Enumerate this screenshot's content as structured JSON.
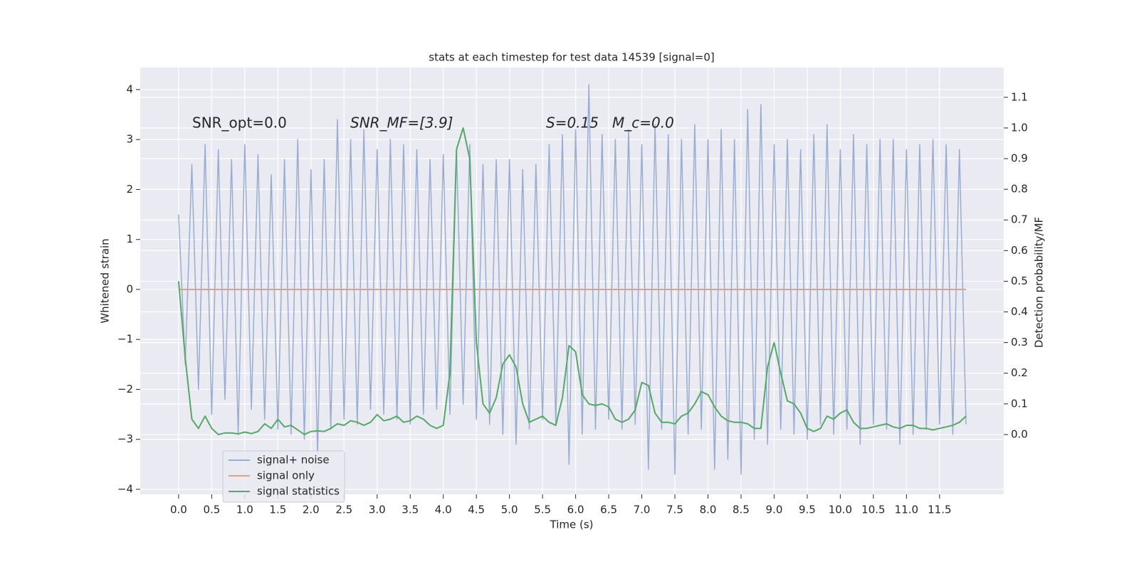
{
  "chart_data": {
    "type": "line",
    "title": "stats at each timestep for test data 14539 [signal=0]",
    "xlabel": "Time (s)",
    "ylabel": "Whitened strain",
    "y2label": "Detection probability/MF",
    "annotations": [
      "SNR_opt=0.0",
      "SNR_MF=[3.9]",
      "S=0.15",
      "M_c=0.0"
    ],
    "xlim": [
      -0.58,
      12.47
    ],
    "ylim": [
      -4.1,
      4.44
    ],
    "y2lim": [
      -0.195,
      1.197
    ],
    "xticks": [
      {
        "value": 0,
        "label": "0.0"
      },
      0.5,
      {
        "value": 1,
        "label": "1.0"
      },
      1.5,
      {
        "value": 2,
        "label": "2.0"
      },
      2.5,
      {
        "value": 3,
        "label": "3.0"
      },
      3.5,
      {
        "value": 4,
        "label": "4.0"
      },
      4.5,
      {
        "value": 5,
        "label": "5.0"
      },
      5.5,
      {
        "value": 6,
        "label": "6.0"
      },
      6.5,
      {
        "value": 7,
        "label": "7.0"
      },
      7.5,
      {
        "value": 8,
        "label": "8.0"
      },
      8.5,
      {
        "value": 9,
        "label": "9.0"
      },
      9.5,
      {
        "value": 10,
        "label": "10.0"
      },
      10.5,
      {
        "value": 11,
        "label": "11.0"
      },
      11.5
    ],
    "yticks": [
      {
        "value": -4,
        "label": "−4"
      },
      {
        "value": -3,
        "label": "−3"
      },
      {
        "value": -2,
        "label": "−2"
      },
      {
        "value": -1,
        "label": "−1"
      },
      0,
      1,
      2,
      3,
      4
    ],
    "y2ticks": [
      {
        "value": 0,
        "label": "0.0"
      },
      0.1,
      0.2,
      0.3,
      0.4,
      0.5,
      0.6,
      0.7,
      0.8,
      0.9,
      {
        "value": 1,
        "label": "1.0"
      },
      1.1
    ],
    "grid": true,
    "legend": "lower left",
    "x": [
      0.0,
      0.1,
      0.2,
      0.3,
      0.4,
      0.5,
      0.6,
      0.7,
      0.8,
      0.9,
      1.0,
      1.1,
      1.2,
      1.3,
      1.4,
      1.5,
      1.6,
      1.7,
      1.8,
      1.9,
      2.0,
      2.1,
      2.2,
      2.3,
      2.4,
      2.5,
      2.6,
      2.7,
      2.8,
      2.9,
      3.0,
      3.1,
      3.2,
      3.3,
      3.4,
      3.5,
      3.6,
      3.7,
      3.8,
      3.9,
      4.0,
      4.1,
      4.2,
      4.3,
      4.4,
      4.5,
      4.6,
      4.7,
      4.8,
      4.9,
      5.0,
      5.1,
      5.2,
      5.3,
      5.4,
      5.5,
      5.6,
      5.7,
      5.8,
      5.9,
      6.0,
      6.1,
      6.2,
      6.3,
      6.4,
      6.5,
      6.6,
      6.7,
      6.8,
      6.9,
      7.0,
      7.1,
      7.2,
      7.3,
      7.4,
      7.5,
      7.6,
      7.7,
      7.8,
      7.9,
      8.0,
      8.1,
      8.2,
      8.3,
      8.4,
      8.5,
      8.6,
      8.7,
      8.8,
      8.9,
      9.0,
      9.1,
      9.2,
      9.3,
      9.4,
      9.5,
      9.6,
      9.7,
      9.8,
      9.9,
      10.0,
      10.1,
      10.2,
      10.3,
      10.4,
      10.5,
      10.6,
      10.7,
      10.8,
      10.9,
      11.0,
      11.1,
      11.2,
      11.3,
      11.4,
      11.5,
      11.6,
      11.7,
      11.8,
      11.9
    ],
    "series": [
      {
        "name": "signal+ noise",
        "color": "#9aadd0",
        "values": [
          1.5,
          -1.5,
          2.5,
          -2.0,
          2.9,
          -2.5,
          2.8,
          -2.2,
          2.6,
          -2.9,
          2.9,
          -2.4,
          2.7,
          -2.6,
          2.3,
          -2.8,
          2.6,
          -2.9,
          3.0,
          -3.0,
          2.4,
          -3.3,
          2.6,
          -2.8,
          3.4,
          -2.6,
          3.0,
          -2.7,
          3.2,
          -2.4,
          2.8,
          -2.5,
          3.0,
          -2.6,
          2.9,
          -2.7,
          2.8,
          -2.5,
          2.6,
          -2.4,
          2.7,
          -2.5,
          2.8,
          -2.3,
          2.9,
          -2.6,
          2.5,
          -2.7,
          2.6,
          -2.9,
          2.6,
          -3.1,
          2.4,
          -2.8,
          2.5,
          -2.6,
          2.9,
          -2.7,
          3.1,
          -3.5,
          3.2,
          -2.9,
          4.1,
          -2.8,
          3.1,
          -2.6,
          3.0,
          -2.8,
          3.2,
          -2.7,
          2.9,
          -3.6,
          3.3,
          -2.8,
          3.1,
          -3.7,
          3.0,
          -2.9,
          3.3,
          -2.8,
          3.0,
          -3.6,
          3.2,
          -3.4,
          3.0,
          -3.7,
          3.6,
          -3.0,
          3.7,
          -3.1,
          2.9,
          -2.8,
          3.0,
          -2.9,
          2.8,
          -3.0,
          3.1,
          -2.7,
          3.3,
          -2.9,
          2.8,
          -2.8,
          3.1,
          -3.1,
          2.9,
          -2.7,
          3.0,
          -2.8,
          3.0,
          -3.1,
          2.8,
          -2.9,
          2.9,
          -2.8,
          3.0,
          -2.7,
          2.9,
          -2.9,
          2.8,
          -2.7
        ]
      },
      {
        "name": "signal only",
        "color": "#e8a07c",
        "values": [
          0,
          0,
          0,
          0,
          0,
          0,
          0,
          0,
          0,
          0,
          0,
          0,
          0,
          0,
          0,
          0,
          0,
          0,
          0,
          0,
          0,
          0,
          0,
          0,
          0,
          0,
          0,
          0,
          0,
          0,
          0,
          0,
          0,
          0,
          0,
          0,
          0,
          0,
          0,
          0,
          0,
          0,
          0,
          0,
          0,
          0,
          0,
          0,
          0,
          0,
          0,
          0,
          0,
          0,
          0,
          0,
          0,
          0,
          0,
          0,
          0,
          0,
          0,
          0,
          0,
          0,
          0,
          0,
          0,
          0,
          0,
          0,
          0,
          0,
          0,
          0,
          0,
          0,
          0,
          0,
          0,
          0,
          0,
          0,
          0,
          0,
          0,
          0,
          0,
          0,
          0,
          0,
          0,
          0,
          0,
          0,
          0,
          0,
          0,
          0,
          0,
          0,
          0,
          0,
          0,
          0,
          0,
          0,
          0,
          0,
          0,
          0,
          0,
          0,
          0,
          0,
          0,
          0,
          0,
          0
        ]
      },
      {
        "name": "signal statistics",
        "color": "#55a868",
        "axis": "y2",
        "values": [
          0.5,
          0.25,
          0.05,
          0.02,
          0.06,
          0.02,
          0.0,
          0.005,
          0.005,
          0.002,
          0.008,
          0.003,
          0.01,
          0.035,
          0.02,
          0.05,
          0.025,
          0.03,
          0.015,
          0.0,
          0.01,
          0.012,
          0.01,
          0.02,
          0.035,
          0.03,
          0.045,
          0.04,
          0.03,
          0.04,
          0.065,
          0.045,
          0.05,
          0.06,
          0.04,
          0.045,
          0.06,
          0.05,
          0.03,
          0.02,
          0.03,
          0.2,
          0.93,
          1.0,
          0.9,
          0.3,
          0.1,
          0.07,
          0.12,
          0.23,
          0.26,
          0.22,
          0.1,
          0.04,
          0.05,
          0.06,
          0.04,
          0.03,
          0.12,
          0.29,
          0.27,
          0.13,
          0.1,
          0.095,
          0.1,
          0.09,
          0.05,
          0.04,
          0.05,
          0.08,
          0.17,
          0.16,
          0.07,
          0.04,
          0.04,
          0.035,
          0.06,
          0.07,
          0.1,
          0.14,
          0.13,
          0.09,
          0.06,
          0.045,
          0.04,
          0.04,
          0.035,
          0.02,
          0.02,
          0.22,
          0.3,
          0.2,
          0.11,
          0.1,
          0.07,
          0.02,
          0.01,
          0.02,
          0.06,
          0.05,
          0.07,
          0.08,
          0.04,
          0.02,
          0.02,
          0.025,
          0.03,
          0.035,
          0.025,
          0.02,
          0.03,
          0.03,
          0.02,
          0.02,
          0.015,
          0.02,
          0.025,
          0.03,
          0.04,
          0.06
        ]
      }
    ]
  }
}
